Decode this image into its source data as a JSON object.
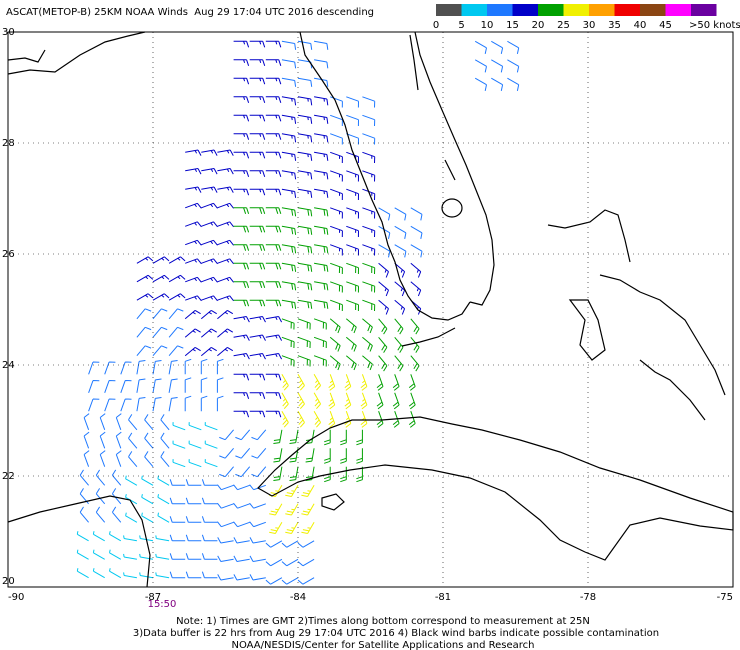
{
  "header": {
    "title": "ASCAT(METOP-B) 25KM NOAA Winds  Aug 29 17:04 UTC 2016 descending"
  },
  "legend": {
    "ticks": [
      0,
      5,
      10,
      15,
      20,
      25,
      30,
      35,
      40,
      45,
      {
        "value": 50,
        "label": ">50 knots"
      }
    ],
    "colors": [
      "#505050",
      "#00c8f0",
      "#1e78ff",
      "#0000c8",
      "#00a000",
      "#f0f000",
      "#ffa000",
      "#f00000",
      "#8b4513",
      "#ff00ff",
      "#6a00a0"
    ]
  },
  "map": {
    "xlim": [
      -90,
      -75
    ],
    "ylim": [
      20,
      30
    ],
    "xticks": [
      -90,
      -87,
      -84,
      -81,
      -78,
      -75
    ],
    "yticks": [
      20,
      22,
      24,
      26,
      28,
      30
    ]
  },
  "time_label": "15:50",
  "wind": {
    "lats": [
      29.5,
      28.5,
      27.5,
      26.5,
      25.5,
      24.5,
      23.5,
      22.5,
      21.5,
      20.5
    ],
    "lons": [
      -88,
      -87,
      -86,
      -85,
      -84,
      -83,
      -82,
      -81,
      -80
    ],
    "speed": [
      [
        null,
        null,
        null,
        17,
        12,
        null,
        null,
        null,
        12
      ],
      [
        null,
        null,
        null,
        17,
        16,
        14,
        null,
        null,
        null
      ],
      [
        null,
        null,
        17,
        17,
        17,
        15,
        null,
        null,
        null
      ],
      [
        null,
        null,
        17,
        21,
        22,
        18,
        14,
        null,
        null
      ],
      [
        null,
        17,
        17,
        22,
        22,
        22,
        17,
        null,
        null
      ],
      [
        null,
        14,
        18,
        19,
        24,
        23,
        21,
        null,
        null
      ],
      [
        12,
        10,
        10,
        18,
        28,
        27,
        22,
        null,
        null
      ],
      [
        13,
        11,
        8,
        14,
        20,
        22,
        null,
        null,
        null
      ],
      [
        12,
        8,
        10,
        13,
        25,
        null,
        null,
        null,
        null
      ],
      [
        9,
        7,
        10,
        12,
        14,
        null,
        null,
        null,
        null
      ]
    ],
    "direction": [
      [
        null,
        null,
        null,
        90,
        100,
        null,
        null,
        null,
        120
      ],
      [
        null,
        null,
        null,
        90,
        100,
        110,
        null,
        null,
        null
      ],
      [
        null,
        null,
        80,
        90,
        100,
        110,
        null,
        null,
        null
      ],
      [
        null,
        null,
        70,
        90,
        100,
        110,
        120,
        null,
        null
      ],
      [
        null,
        60,
        70,
        90,
        100,
        110,
        130,
        null,
        null
      ],
      [
        null,
        40,
        50,
        80,
        110,
        130,
        140,
        null,
        null
      ],
      [
        20,
        10,
        0,
        90,
        150,
        160,
        160,
        null,
        null
      ],
      [
        340,
        320,
        290,
        220,
        190,
        180,
        null,
        null,
        null
      ],
      [
        320,
        300,
        270,
        250,
        210,
        null,
        null,
        null,
        null
      ],
      [
        300,
        280,
        270,
        260,
        240,
        null,
        null,
        null,
        null
      ]
    ]
  },
  "notes": [
    "Note: 1) Times are GMT 2)Times along bottom correspond to measurement at 25N",
    "3)Data buffer is 22 hrs from Aug 29 17:04 UTC 2016 4) Black wind barbs indicate possible contamination",
    "NOAA/NESDIS/Center for Satellite Applications and Research"
  ]
}
